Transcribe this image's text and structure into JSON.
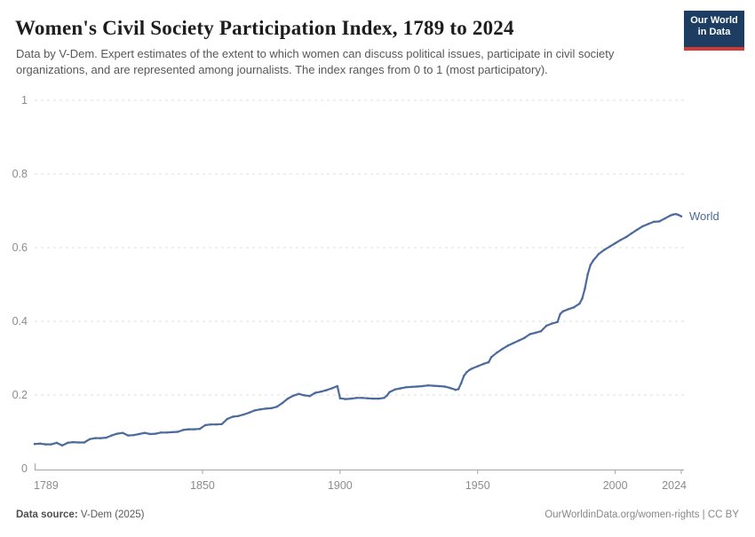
{
  "header": {
    "title": "Women's Civil Society Participation Index, 1789 to 2024",
    "subtitle": "Data by V-Dem. Expert estimates of the extent to which women can discuss political issues, participate in civil society organizations, and are represented among journalists. The index ranges from 0 to 1 (most participatory).",
    "logo_line1": "Our World",
    "logo_line2": "in Data",
    "logo_bg_color": "#1d3d63",
    "logo_stripe_color": "#d13a34"
  },
  "chart_data": {
    "type": "line",
    "title": "Women's Civil Society Participation Index, 1789 to 2024",
    "xlabel": "",
    "ylabel": "",
    "xlim": [
      1789,
      2024
    ],
    "ylim": [
      0,
      1
    ],
    "x_ticks": [
      1789,
      1850,
      1900,
      1950,
      2000,
      2024
    ],
    "x_tick_labels": [
      "1789",
      "1850",
      "1900",
      "1950",
      "2000",
      "2024"
    ],
    "y_ticks": [
      0,
      0.2,
      0.4,
      0.6,
      0.8,
      1
    ],
    "y_tick_labels": [
      "0",
      "0.2",
      "0.4",
      "0.6",
      "0.8",
      "1"
    ],
    "grid": "horizontal-dashed",
    "legend_position": "end-of-line-label",
    "end_label": "World",
    "series": [
      {
        "name": "World",
        "color": "#4c6a9c",
        "points": [
          [
            1789,
            0.067
          ],
          [
            1791,
            0.068
          ],
          [
            1793,
            0.066
          ],
          [
            1795,
            0.066
          ],
          [
            1797,
            0.07
          ],
          [
            1799,
            0.063
          ],
          [
            1801,
            0.07
          ],
          [
            1803,
            0.072
          ],
          [
            1805,
            0.071
          ],
          [
            1807,
            0.071
          ],
          [
            1809,
            0.08
          ],
          [
            1811,
            0.083
          ],
          [
            1813,
            0.083
          ],
          [
            1815,
            0.084
          ],
          [
            1817,
            0.09
          ],
          [
            1819,
            0.095
          ],
          [
            1821,
            0.097
          ],
          [
            1823,
            0.09
          ],
          [
            1825,
            0.091
          ],
          [
            1827,
            0.094
          ],
          [
            1829,
            0.097
          ],
          [
            1831,
            0.094
          ],
          [
            1833,
            0.095
          ],
          [
            1835,
            0.098
          ],
          [
            1837,
            0.098
          ],
          [
            1839,
            0.099
          ],
          [
            1841,
            0.1
          ],
          [
            1843,
            0.105
          ],
          [
            1845,
            0.107
          ],
          [
            1847,
            0.107
          ],
          [
            1849,
            0.108
          ],
          [
            1851,
            0.118
          ],
          [
            1853,
            0.12
          ],
          [
            1855,
            0.12
          ],
          [
            1857,
            0.121
          ],
          [
            1859,
            0.135
          ],
          [
            1861,
            0.141
          ],
          [
            1863,
            0.143
          ],
          [
            1865,
            0.147
          ],
          [
            1867,
            0.152
          ],
          [
            1869,
            0.158
          ],
          [
            1871,
            0.161
          ],
          [
            1873,
            0.163
          ],
          [
            1875,
            0.164
          ],
          [
            1877,
            0.168
          ],
          [
            1879,
            0.178
          ],
          [
            1881,
            0.19
          ],
          [
            1883,
            0.198
          ],
          [
            1885,
            0.203
          ],
          [
            1887,
            0.199
          ],
          [
            1889,
            0.197
          ],
          [
            1891,
            0.206
          ],
          [
            1893,
            0.209
          ],
          [
            1895,
            0.213
          ],
          [
            1897,
            0.218
          ],
          [
            1899,
            0.224
          ],
          [
            1900,
            0.191
          ],
          [
            1902,
            0.189
          ],
          [
            1904,
            0.19
          ],
          [
            1906,
            0.192
          ],
          [
            1908,
            0.192
          ],
          [
            1910,
            0.191
          ],
          [
            1912,
            0.19
          ],
          [
            1914,
            0.19
          ],
          [
            1916,
            0.192
          ],
          [
            1917,
            0.198
          ],
          [
            1918,
            0.208
          ],
          [
            1920,
            0.215
          ],
          [
            1922,
            0.218
          ],
          [
            1924,
            0.221
          ],
          [
            1926,
            0.222
          ],
          [
            1928,
            0.223
          ],
          [
            1930,
            0.224
          ],
          [
            1932,
            0.226
          ],
          [
            1934,
            0.225
          ],
          [
            1936,
            0.224
          ],
          [
            1938,
            0.223
          ],
          [
            1940,
            0.219
          ],
          [
            1942,
            0.214
          ],
          [
            1943,
            0.216
          ],
          [
            1944,
            0.232
          ],
          [
            1945,
            0.252
          ],
          [
            1946,
            0.262
          ],
          [
            1947,
            0.268
          ],
          [
            1948,
            0.272
          ],
          [
            1950,
            0.278
          ],
          [
            1952,
            0.284
          ],
          [
            1954,
            0.289
          ],
          [
            1955,
            0.303
          ],
          [
            1957,
            0.315
          ],
          [
            1959,
            0.325
          ],
          [
            1961,
            0.334
          ],
          [
            1963,
            0.341
          ],
          [
            1965,
            0.348
          ],
          [
            1967,
            0.355
          ],
          [
            1969,
            0.365
          ],
          [
            1971,
            0.369
          ],
          [
            1973,
            0.373
          ],
          [
            1975,
            0.388
          ],
          [
            1977,
            0.394
          ],
          [
            1979,
            0.398
          ],
          [
            1980,
            0.42
          ],
          [
            1981,
            0.427
          ],
          [
            1983,
            0.433
          ],
          [
            1985,
            0.438
          ],
          [
            1987,
            0.448
          ],
          [
            1988,
            0.462
          ],
          [
            1989,
            0.49
          ],
          [
            1990,
            0.528
          ],
          [
            1991,
            0.553
          ],
          [
            1992,
            0.565
          ],
          [
            1994,
            0.583
          ],
          [
            1996,
            0.594
          ],
          [
            1998,
            0.603
          ],
          [
            2000,
            0.612
          ],
          [
            2002,
            0.621
          ],
          [
            2004,
            0.629
          ],
          [
            2006,
            0.639
          ],
          [
            2008,
            0.649
          ],
          [
            2010,
            0.658
          ],
          [
            2012,
            0.664
          ],
          [
            2014,
            0.67
          ],
          [
            2016,
            0.671
          ],
          [
            2018,
            0.679
          ],
          [
            2020,
            0.687
          ],
          [
            2021,
            0.69
          ],
          [
            2022,
            0.691
          ],
          [
            2023,
            0.689
          ],
          [
            2024,
            0.685
          ]
        ]
      }
    ],
    "style": {
      "grid_color": "#dcdcdc",
      "axis_color": "#a3a3a3",
      "tick_label_color": "#8c8c8c",
      "end_label_color": "#4c6a9c"
    }
  },
  "footer": {
    "source_label": "Data source:",
    "source_value": " V-Dem (2025)",
    "attribution": "OurWorldinData.org/women-rights | CC BY"
  }
}
